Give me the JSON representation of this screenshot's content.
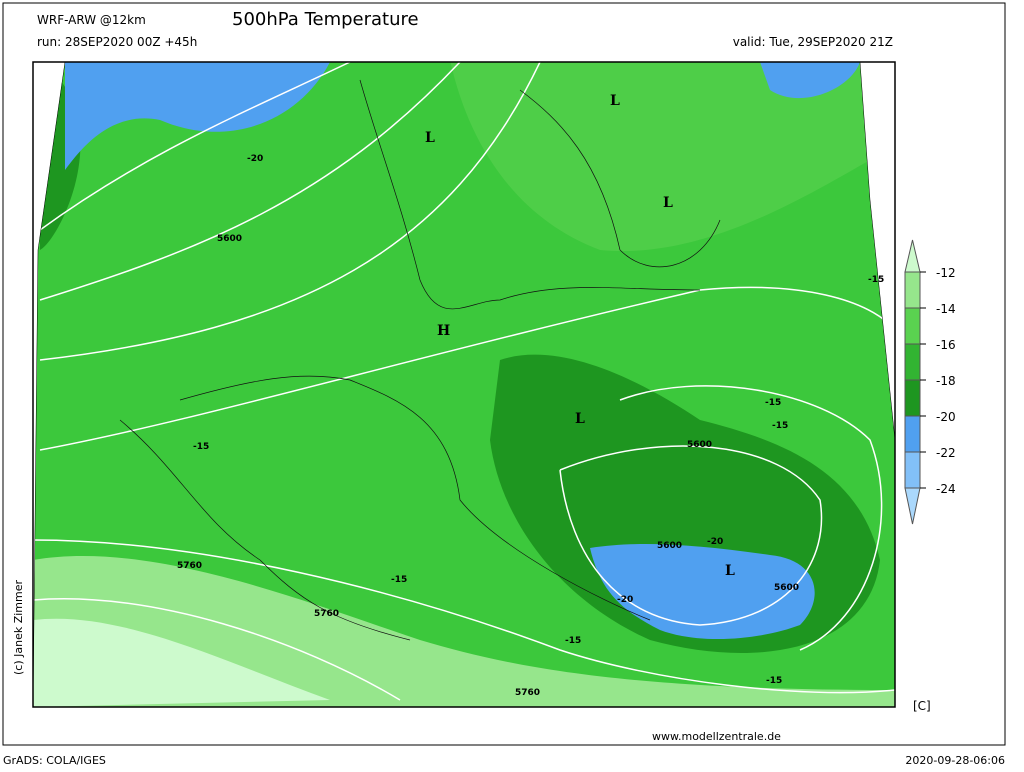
{
  "header": {
    "model": "WRF-ARW @12km",
    "title": "500hPa Temperature",
    "run": "run: 28SEP2020 00Z +45h",
    "valid": "valid: Tue, 29SEP2020 21Z"
  },
  "map": {
    "labels": [
      "L",
      "L",
      "L",
      "H",
      "L",
      "L",
      "-20",
      "5600",
      "-15",
      "-15",
      "-15",
      "5600",
      "-15",
      "5600",
      "-20",
      "5600",
      "-20",
      "5760",
      "-15",
      "5760",
      "-15",
      "-15",
      "5760"
    ]
  },
  "colorbar": {
    "ticks": [
      -12,
      -14,
      -16,
      -18,
      -20,
      -22,
      -24
    ],
    "colors": [
      "#cdfacd",
      "#96e68c",
      "#5ad250",
      "#32b432",
      "#1e9620",
      "#50a0f0",
      "#82c0f8",
      "#aad8fc"
    ],
    "unit": "[C]"
  },
  "footer": {
    "software": "GrADS: COLA/IGES",
    "url": "www.modellzentrale.de",
    "timestamp": "2020-09-28-06:06",
    "credit": "(c) Janek Zimmer"
  }
}
